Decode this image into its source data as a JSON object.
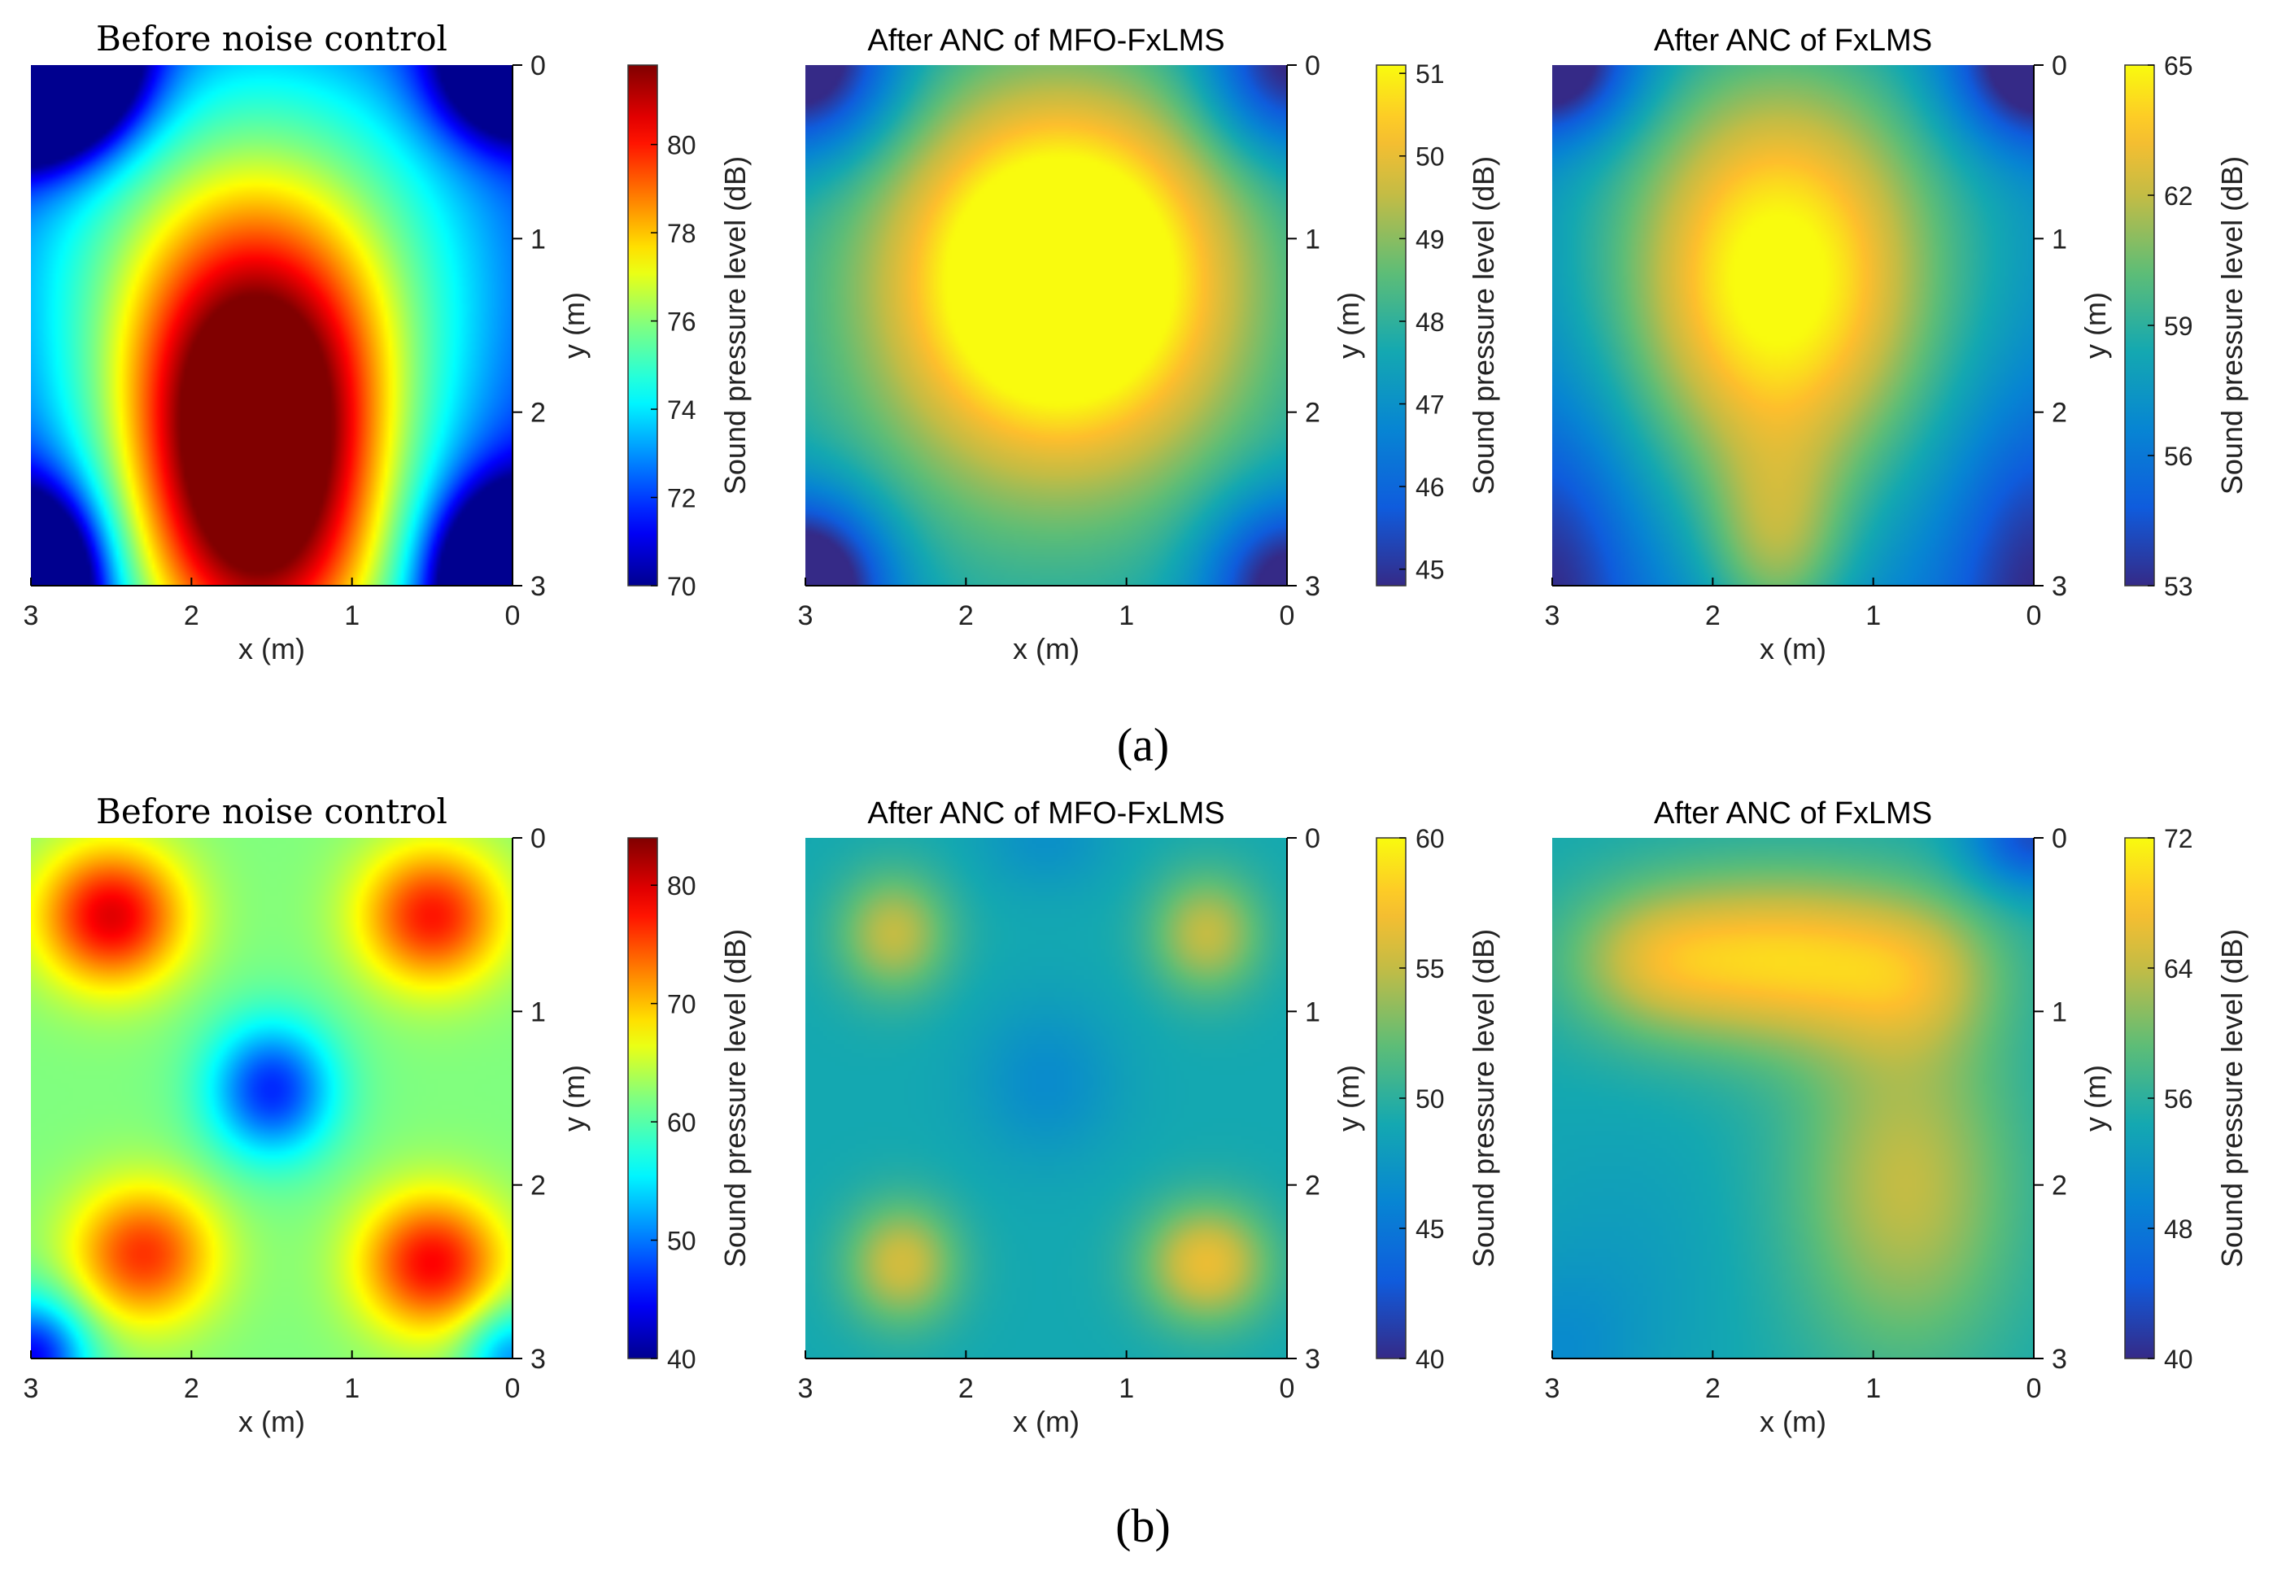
{
  "figure": {
    "captions": [
      "(a)",
      "(b)"
    ]
  },
  "chart_data": [
    {
      "type": "heatmap",
      "row": "a",
      "title": "Before noise control",
      "title_style": "serif",
      "xlabel": "x (m)",
      "ylabel": "y (m)",
      "xlim": [
        3,
        0
      ],
      "ylim": [
        0,
        3
      ],
      "xticks": [
        "3",
        "2",
        "1",
        "0"
      ],
      "yticks": [
        "0",
        "1",
        "2",
        "3"
      ],
      "colormap": "jet",
      "colorbar": {
        "label": "Sound pressure level (dB)",
        "range": [
          70,
          81.8
        ],
        "ticks": [
          "70",
          "72",
          "74",
          "76",
          "78",
          "80"
        ]
      },
      "field": {
        "base": 0.05,
        "terms": [
          {
            "x": 1.6,
            "y": 2.2,
            "sx": 0.8,
            "sy": 1.1,
            "a": 0.85
          },
          {
            "x": 1.6,
            "y": 1.2,
            "sx": 1.6,
            "sy": 1.5,
            "a": 0.5
          },
          {
            "x": 1.5,
            "y": 3.2,
            "sx": 1.1,
            "sy": 0.8,
            "a": 0.3
          },
          {
            "x": 3.0,
            "y": 0.0,
            "sx": 0.55,
            "sy": 0.45,
            "a": -1.4
          },
          {
            "x": 0.0,
            "y": 0.0,
            "sx": 0.45,
            "sy": 0.4,
            "a": -0.6
          },
          {
            "x": 3.0,
            "y": 3.0,
            "sx": 0.4,
            "sy": 0.5,
            "a": -0.8
          },
          {
            "x": 0.0,
            "y": 3.0,
            "sx": 0.45,
            "sy": 0.5,
            "a": -0.9
          }
        ]
      }
    },
    {
      "type": "heatmap",
      "row": "a",
      "title": "After ANC of MFO-FxLMS",
      "title_style": "sans",
      "xlabel": "x (m)",
      "ylabel": "y (m)",
      "xlim": [
        3,
        0
      ],
      "ylim": [
        0,
        3
      ],
      "xticks": [
        "3",
        "2",
        "1",
        "0"
      ],
      "yticks": [
        "0",
        "1",
        "2",
        "3"
      ],
      "colormap": "parula",
      "colorbar": {
        "label": "Sound pressure level (dB)",
        "range": [
          44.8,
          51.1
        ],
        "ticks": [
          "45",
          "46",
          "47",
          "48",
          "49",
          "50",
          "51"
        ]
      },
      "field": {
        "base": 0.32,
        "terms": [
          {
            "x": 1.4,
            "y": 1.2,
            "sx": 1.0,
            "sy": 1.0,
            "a": 0.7
          },
          {
            "x": 1.5,
            "y": 1.5,
            "sx": 2.0,
            "sy": 2.0,
            "a": 0.3
          },
          {
            "x": 3.0,
            "y": 0.0,
            "sx": 0.55,
            "sy": 0.5,
            "a": -0.55
          },
          {
            "x": 0.0,
            "y": 0.0,
            "sx": 0.5,
            "sy": 0.5,
            "a": -0.45
          },
          {
            "x": 3.0,
            "y": 3.0,
            "sx": 0.5,
            "sy": 0.5,
            "a": -0.65
          },
          {
            "x": 0.0,
            "y": 3.0,
            "sx": 0.5,
            "sy": 0.5,
            "a": -0.5
          }
        ]
      }
    },
    {
      "type": "heatmap",
      "row": "a",
      "title": "After ANC of FxLMS",
      "title_style": "sans",
      "xlabel": "x (m)",
      "ylabel": "y (m)",
      "xlim": [
        3,
        0
      ],
      "ylim": [
        0,
        3
      ],
      "xticks": [
        "3",
        "2",
        "1",
        "0"
      ],
      "yticks": [
        "0",
        "1",
        "2",
        "3"
      ],
      "colormap": "parula",
      "colorbar": {
        "label": "Sound pressure level (dB)",
        "range": [
          53,
          65
        ],
        "ticks": [
          "53",
          "56",
          "59",
          "62",
          "65"
        ]
      },
      "field": {
        "base": 0.22,
        "terms": [
          {
            "x": 1.6,
            "y": 1.3,
            "sx": 0.9,
            "sy": 1.2,
            "a": 0.55
          },
          {
            "x": 1.6,
            "y": 2.8,
            "sx": 0.45,
            "sy": 0.6,
            "a": 0.3
          },
          {
            "x": 1.5,
            "y": 1.0,
            "sx": 1.8,
            "sy": 1.6,
            "a": 0.3
          },
          {
            "x": 3.0,
            "y": 0.0,
            "sx": 0.5,
            "sy": 0.4,
            "a": -0.5
          },
          {
            "x": 0.0,
            "y": 0.0,
            "sx": 0.5,
            "sy": 0.45,
            "a": -0.5
          },
          {
            "x": 3.0,
            "y": 3.0,
            "sx": 0.5,
            "sy": 1.0,
            "a": -0.25
          },
          {
            "x": 0.0,
            "y": 3.0,
            "sx": 0.5,
            "sy": 1.0,
            "a": -0.25
          }
        ]
      }
    },
    {
      "type": "heatmap",
      "row": "b",
      "title": "Before noise control",
      "title_style": "serif",
      "xlabel": "x (m)",
      "ylabel": "y (m)",
      "xlim": [
        3,
        0
      ],
      "ylim": [
        0,
        3
      ],
      "xticks": [
        "3",
        "2",
        "1",
        "0"
      ],
      "yticks": [
        "0",
        "1",
        "2",
        "3"
      ],
      "colormap": "jet",
      "colorbar": {
        "label": "Sound pressure level (dB)",
        "range": [
          40,
          84
        ],
        "ticks": [
          "40",
          "50",
          "60",
          "70",
          "80"
        ]
      },
      "field": {
        "base": 0.5,
        "terms": [
          {
            "x": 2.5,
            "y": 0.45,
            "sx": 0.45,
            "sy": 0.4,
            "a": 0.4
          },
          {
            "x": 0.5,
            "y": 0.45,
            "sx": 0.45,
            "sy": 0.4,
            "a": 0.35
          },
          {
            "x": 2.3,
            "y": 2.4,
            "sx": 0.45,
            "sy": 0.4,
            "a": 0.32
          },
          {
            "x": 0.5,
            "y": 2.45,
            "sx": 0.45,
            "sy": 0.4,
            "a": 0.37
          },
          {
            "x": 1.5,
            "y": 1.45,
            "sx": 0.4,
            "sy": 0.4,
            "a": -0.35
          },
          {
            "x": 3.0,
            "y": 3.0,
            "sx": 0.35,
            "sy": 0.35,
            "a": -0.4
          },
          {
            "x": 0.0,
            "y": 3.0,
            "sx": 0.3,
            "sy": 0.3,
            "a": -0.25
          }
        ]
      }
    },
    {
      "type": "heatmap",
      "row": "b",
      "title": "After ANC of MFO-FxLMS",
      "title_style": "sans",
      "xlabel": "x (m)",
      "ylabel": "y (m)",
      "xlim": [
        3,
        0
      ],
      "ylim": [
        0,
        3
      ],
      "xticks": [
        "3",
        "2",
        "1",
        "0"
      ],
      "yticks": [
        "0",
        "1",
        "2",
        "3"
      ],
      "colormap": "parula",
      "colorbar": {
        "label": "Sound pressure level (dB)",
        "range": [
          40,
          60
        ],
        "ticks": [
          "40",
          "45",
          "50",
          "55",
          "60"
        ]
      },
      "field": {
        "base": 0.45,
        "terms": [
          {
            "x": 2.45,
            "y": 0.55,
            "sx": 0.35,
            "sy": 0.35,
            "a": 0.3
          },
          {
            "x": 0.5,
            "y": 0.55,
            "sx": 0.35,
            "sy": 0.35,
            "a": 0.3
          },
          {
            "x": 2.4,
            "y": 2.45,
            "sx": 0.35,
            "sy": 0.35,
            "a": 0.33
          },
          {
            "x": 0.5,
            "y": 2.45,
            "sx": 0.4,
            "sy": 0.35,
            "a": 0.38
          },
          {
            "x": 1.5,
            "y": 1.4,
            "sx": 0.45,
            "sy": 0.45,
            "a": -0.12
          },
          {
            "x": 1.5,
            "y": 0.0,
            "sx": 0.4,
            "sy": 0.3,
            "a": -0.1
          }
        ]
      }
    },
    {
      "type": "heatmap",
      "row": "b",
      "title": "After ANC of FxLMS",
      "title_style": "sans",
      "xlabel": "x (m)",
      "ylabel": "y (m)",
      "xlim": [
        3,
        0
      ],
      "ylim": [
        0,
        3
      ],
      "xticks": [
        "3",
        "2",
        "1",
        "0"
      ],
      "yticks": [
        "0",
        "1",
        "2",
        "3"
      ],
      "colormap": "parula",
      "colorbar": {
        "label": "Sound pressure level (dB)",
        "range": [
          40,
          72
        ],
        "ticks": [
          "40",
          "48",
          "56",
          "64",
          "72"
        ]
      },
      "field": {
        "base": 0.45,
        "terms": [
          {
            "x": 1.6,
            "y": 0.7,
            "sx": 1.0,
            "sy": 0.5,
            "a": 0.45
          },
          {
            "x": 2.4,
            "y": 0.7,
            "sx": 0.5,
            "sy": 0.4,
            "a": 0.15
          },
          {
            "x": 0.7,
            "y": 0.8,
            "sx": 0.5,
            "sy": 0.45,
            "a": 0.15
          },
          {
            "x": 0.8,
            "y": 2.0,
            "sx": 0.7,
            "sy": 1.0,
            "a": 0.3
          },
          {
            "x": 2.6,
            "y": 2.5,
            "sx": 0.7,
            "sy": 0.8,
            "a": -0.05
          },
          {
            "x": 0.0,
            "y": 0.0,
            "sx": 0.4,
            "sy": 0.3,
            "a": -0.35
          },
          {
            "x": 3.0,
            "y": 3.0,
            "sx": 0.5,
            "sy": 0.5,
            "a": -0.1
          }
        ]
      }
    }
  ]
}
